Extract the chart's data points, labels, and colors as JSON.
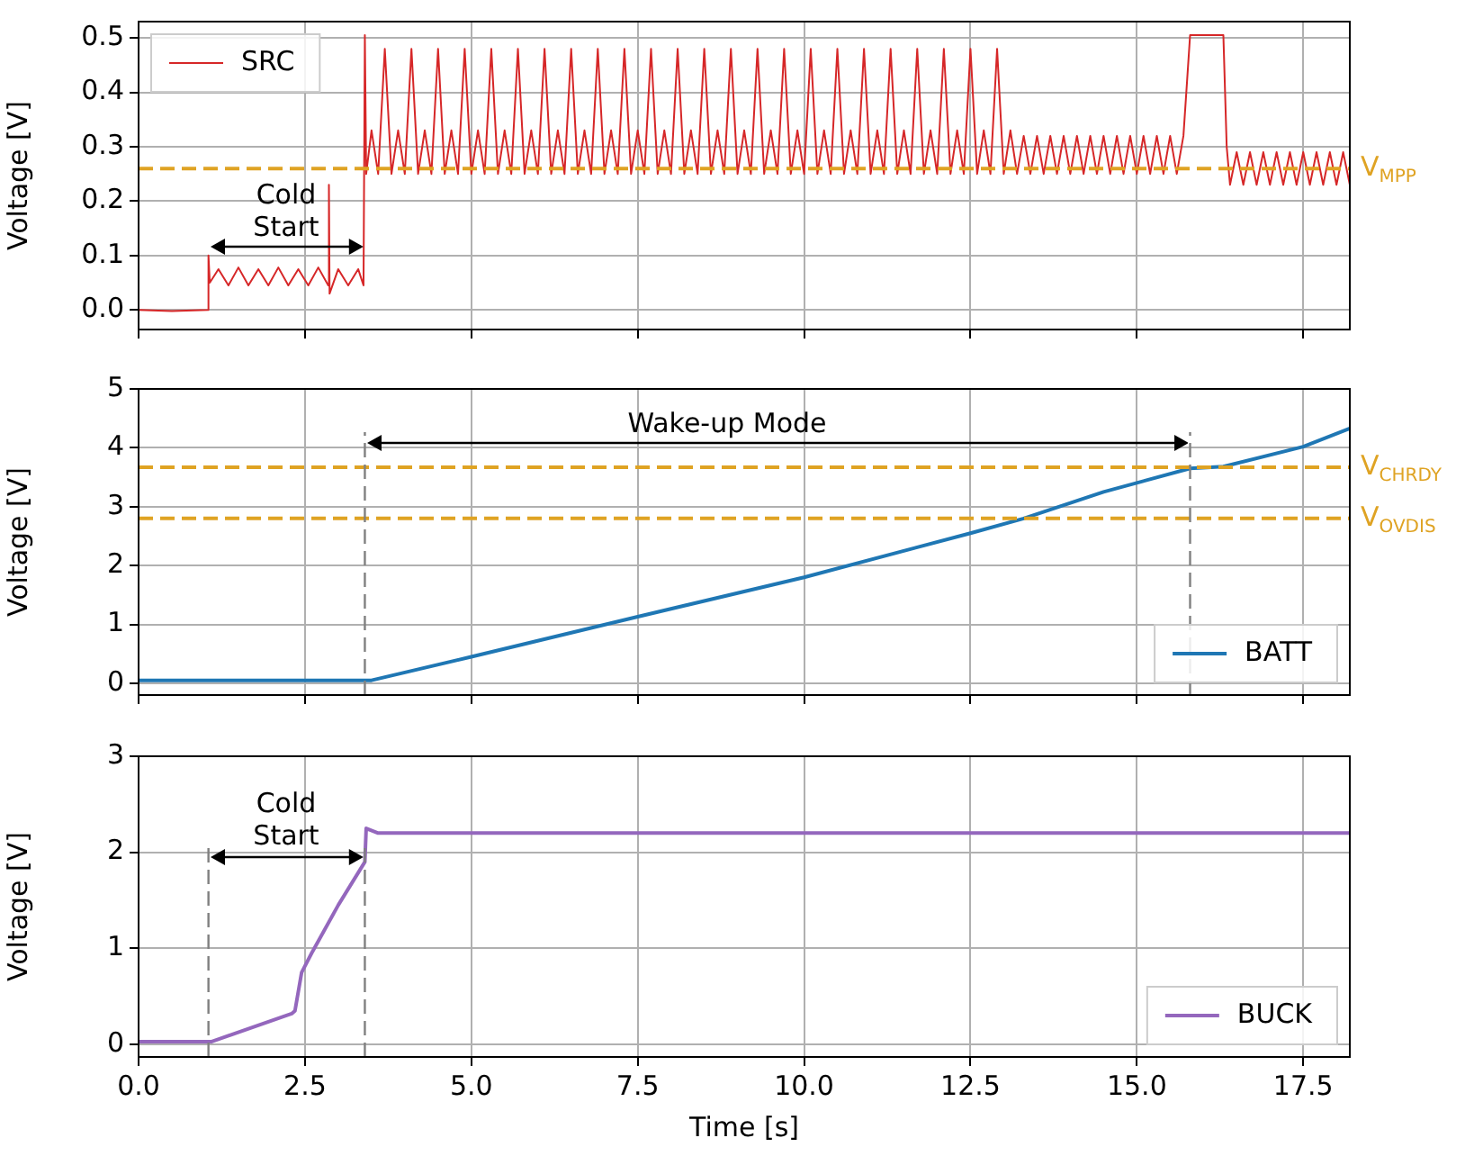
{
  "chart_data": [
    {
      "type": "line",
      "ylabel": "Voltage [V]",
      "xlim": [
        0,
        18.2
      ],
      "ylim": [
        -0.036,
        0.53
      ],
      "xticks": [
        {
          "value": 0,
          "label": null
        },
        {
          "value": 2.5,
          "label": null
        },
        {
          "value": 5,
          "label": null
        },
        {
          "value": 7.5,
          "label": null
        },
        {
          "value": 10,
          "label": null
        },
        {
          "value": 12.5,
          "label": null
        },
        {
          "value": 15,
          "label": null
        },
        {
          "value": 17.5,
          "label": null
        }
      ],
      "yticks": [
        {
          "value": 0,
          "label": "0.0"
        },
        {
          "value": 0.1,
          "label": "0.1"
        },
        {
          "value": 0.2,
          "label": "0.2"
        },
        {
          "value": 0.3,
          "label": "0.3"
        },
        {
          "value": 0.4,
          "label": "0.4"
        },
        {
          "value": 0.5,
          "label": "0.5"
        }
      ],
      "tick_labels": "y",
      "grid": true,
      "legend": "top left",
      "ref_lines": [
        {
          "axis": "y",
          "value": 0.26,
          "label": "V$_{MPP}$",
          "color": "#dfa323",
          "line_style": "dashed"
        }
      ],
      "annotations": [
        "Cold\nStart"
      ],
      "series": [
        {
          "name": "SRC",
          "color": "#d62728",
          "x": [
            0,
            0.5,
            1.04,
            1.05,
            1.07,
            1.2,
            1.35,
            1.5,
            1.65,
            1.8,
            1.95,
            2.1,
            2.25,
            2.4,
            2.55,
            2.7,
            2.85,
            2.86,
            2.87,
            3.0,
            3.15,
            3.3,
            3.38,
            3.4,
            3.42,
            3.5,
            3.6,
            3.7,
            3.8,
            3.9,
            4.0,
            4.1,
            4.2,
            4.3,
            4.4,
            4.5,
            4.6,
            4.7,
            4.8,
            4.9,
            5.0,
            5.1,
            5.2,
            5.3,
            5.4,
            5.5,
            5.6,
            5.7,
            5.8,
            5.9,
            6.0,
            6.1,
            6.2,
            6.3,
            6.4,
            6.5,
            6.6,
            6.7,
            6.8,
            6.9,
            7.0,
            7.1,
            7.2,
            7.3,
            7.4,
            7.5,
            7.6,
            7.7,
            7.8,
            7.9,
            8.0,
            8.1,
            8.2,
            8.3,
            8.4,
            8.5,
            8.6,
            8.7,
            8.8,
            8.9,
            9.0,
            9.1,
            9.2,
            9.3,
            9.4,
            9.5,
            9.6,
            9.7,
            9.8,
            9.9,
            10.0,
            10.1,
            10.2,
            10.3,
            10.4,
            10.5,
            10.6,
            10.7,
            10.8,
            10.9,
            11.0,
            11.1,
            11.2,
            11.3,
            11.4,
            11.5,
            11.6,
            11.7,
            11.8,
            11.9,
            12.0,
            12.1,
            12.2,
            12.3,
            12.4,
            12.5,
            12.6,
            12.7,
            12.8,
            12.9,
            13.0,
            13.1,
            13.2,
            13.3,
            13.4,
            13.5,
            13.6,
            13.7,
            13.8,
            13.9,
            14.0,
            14.1,
            14.2,
            14.3,
            14.4,
            14.5,
            14.6,
            14.7,
            14.8,
            14.9,
            15.0,
            15.1,
            15.2,
            15.3,
            15.4,
            15.5,
            15.6,
            15.7,
            15.8,
            16.3,
            16.35,
            16.4,
            16.5,
            16.6,
            16.7,
            16.8,
            16.9,
            17.0,
            17.1,
            17.2,
            17.3,
            17.4,
            17.5,
            17.6,
            17.7,
            17.8,
            17.9,
            18.0,
            18.1,
            18.2
          ],
          "values": [
            0,
            -0.002,
            0,
            0.1,
            0.05,
            0.075,
            0.045,
            0.078,
            0.045,
            0.075,
            0.045,
            0.078,
            0.045,
            0.075,
            0.045,
            0.078,
            0.045,
            0.23,
            0.03,
            0.075,
            0.045,
            0.075,
            0.045,
            0.505,
            0.25,
            0.33,
            0.25,
            0.48,
            0.25,
            0.33,
            0.25,
            0.48,
            0.25,
            0.33,
            0.25,
            0.48,
            0.25,
            0.33,
            0.25,
            0.48,
            0.25,
            0.33,
            0.25,
            0.48,
            0.25,
            0.33,
            0.25,
            0.48,
            0.25,
            0.33,
            0.25,
            0.48,
            0.25,
            0.33,
            0.25,
            0.48,
            0.25,
            0.33,
            0.25,
            0.48,
            0.25,
            0.33,
            0.25,
            0.48,
            0.25,
            0.33,
            0.25,
            0.48,
            0.25,
            0.33,
            0.25,
            0.48,
            0.25,
            0.33,
            0.25,
            0.48,
            0.25,
            0.33,
            0.25,
            0.48,
            0.25,
            0.33,
            0.25,
            0.48,
            0.25,
            0.33,
            0.25,
            0.48,
            0.25,
            0.33,
            0.25,
            0.48,
            0.25,
            0.33,
            0.25,
            0.48,
            0.25,
            0.33,
            0.25,
            0.48,
            0.25,
            0.33,
            0.25,
            0.48,
            0.25,
            0.33,
            0.25,
            0.48,
            0.25,
            0.33,
            0.25,
            0.48,
            0.25,
            0.33,
            0.25,
            0.48,
            0.25,
            0.33,
            0.25,
            0.48,
            0.25,
            0.33,
            0.25,
            0.32,
            0.25,
            0.32,
            0.25,
            0.32,
            0.25,
            0.32,
            0.25,
            0.32,
            0.25,
            0.32,
            0.25,
            0.32,
            0.25,
            0.32,
            0.25,
            0.32,
            0.25,
            0.32,
            0.25,
            0.32,
            0.25,
            0.32,
            0.25,
            0.32,
            0.505,
            0.505,
            0.3,
            0.23,
            0.29,
            0.23,
            0.29,
            0.23,
            0.29,
            0.23,
            0.29,
            0.23,
            0.29,
            0.23,
            0.29,
            0.23,
            0.29,
            0.23,
            0.29,
            0.23,
            0.29,
            0.23
          ]
        }
      ]
    },
    {
      "type": "line",
      "ylabel": "Voltage [V]",
      "xlim": [
        0,
        18.2
      ],
      "ylim": [
        -0.2,
        5
      ],
      "xticks": [
        {
          "value": 0,
          "label": null
        },
        {
          "value": 2.5,
          "label": null
        },
        {
          "value": 5,
          "label": null
        },
        {
          "value": 7.5,
          "label": null
        },
        {
          "value": 10,
          "label": null
        },
        {
          "value": 12.5,
          "label": null
        },
        {
          "value": 15,
          "label": null
        },
        {
          "value": 17.5,
          "label": null
        }
      ],
      "yticks": [
        0,
        1,
        2,
        3,
        4,
        5
      ],
      "tick_labels": "y",
      "grid": true,
      "legend": "bottom right",
      "ref_lines": [
        {
          "axis": "y",
          "value": 3.67,
          "label": "V$_{CHRDY}$",
          "color": "#dfa323",
          "line_style": "dashed"
        },
        {
          "axis": "y",
          "value": 2.8,
          "label": "V$_{OVDIS}$",
          "color": "#dfa323",
          "line_style": "dashed"
        },
        {
          "axis": "x",
          "value": 3.4,
          "color": "#808080",
          "line_style": "dashed"
        },
        {
          "axis": "x",
          "value": 15.8,
          "color": "#808080",
          "line_style": "dashed"
        }
      ],
      "annotations": [
        "Wake-up Mode"
      ],
      "series": [
        {
          "name": "BATT",
          "color": "#1f77b4",
          "x": [
            0,
            2,
            3.5,
            5,
            7.5,
            10,
            12.5,
            13.3,
            14.5,
            15.8,
            16.3,
            17.5,
            18.2
          ],
          "values": [
            0.05,
            0.05,
            0.05,
            0.45,
            1.13,
            1.8,
            2.55,
            2.8,
            3.25,
            3.65,
            3.68,
            4.02,
            4.33
          ]
        }
      ]
    },
    {
      "type": "line",
      "ylabel": "Voltage [V]",
      "xlabel": "Time [s]",
      "xlim": [
        0,
        18.2
      ],
      "ylim": [
        -0.13,
        3
      ],
      "xticks": [
        {
          "value": 0,
          "label": "0.0"
        },
        {
          "value": 2.5,
          "label": "2.5"
        },
        {
          "value": 5,
          "label": "5.0"
        },
        {
          "value": 7.5,
          "label": "7.5"
        },
        {
          "value": 10,
          "label": "10.0"
        },
        {
          "value": 12.5,
          "label": "12.5"
        },
        {
          "value": 15,
          "label": "15.0"
        },
        {
          "value": 17.5,
          "label": "17.5"
        }
      ],
      "yticks": [
        0,
        1,
        2,
        3
      ],
      "grid": true,
      "legend": "bottom right",
      "ref_lines": [
        {
          "axis": "x",
          "value": 1.05,
          "color": "#808080",
          "line_style": "dashed"
        },
        {
          "axis": "x",
          "value": 3.4,
          "color": "#808080",
          "line_style": "dashed"
        }
      ],
      "annotations": [
        "Cold\nStart"
      ],
      "series": [
        {
          "name": "BUCK",
          "color": "#9467bd",
          "x": [
            0,
            1.1,
            2.3,
            2.35,
            2.45,
            2.6,
            3.0,
            3.4,
            3.42,
            3.6,
            10,
            18.2
          ],
          "values": [
            0.03,
            0.03,
            0.32,
            0.35,
            0.75,
            0.95,
            1.45,
            1.9,
            2.25,
            2.2,
            2.2,
            2.2
          ]
        }
      ]
    }
  ]
}
